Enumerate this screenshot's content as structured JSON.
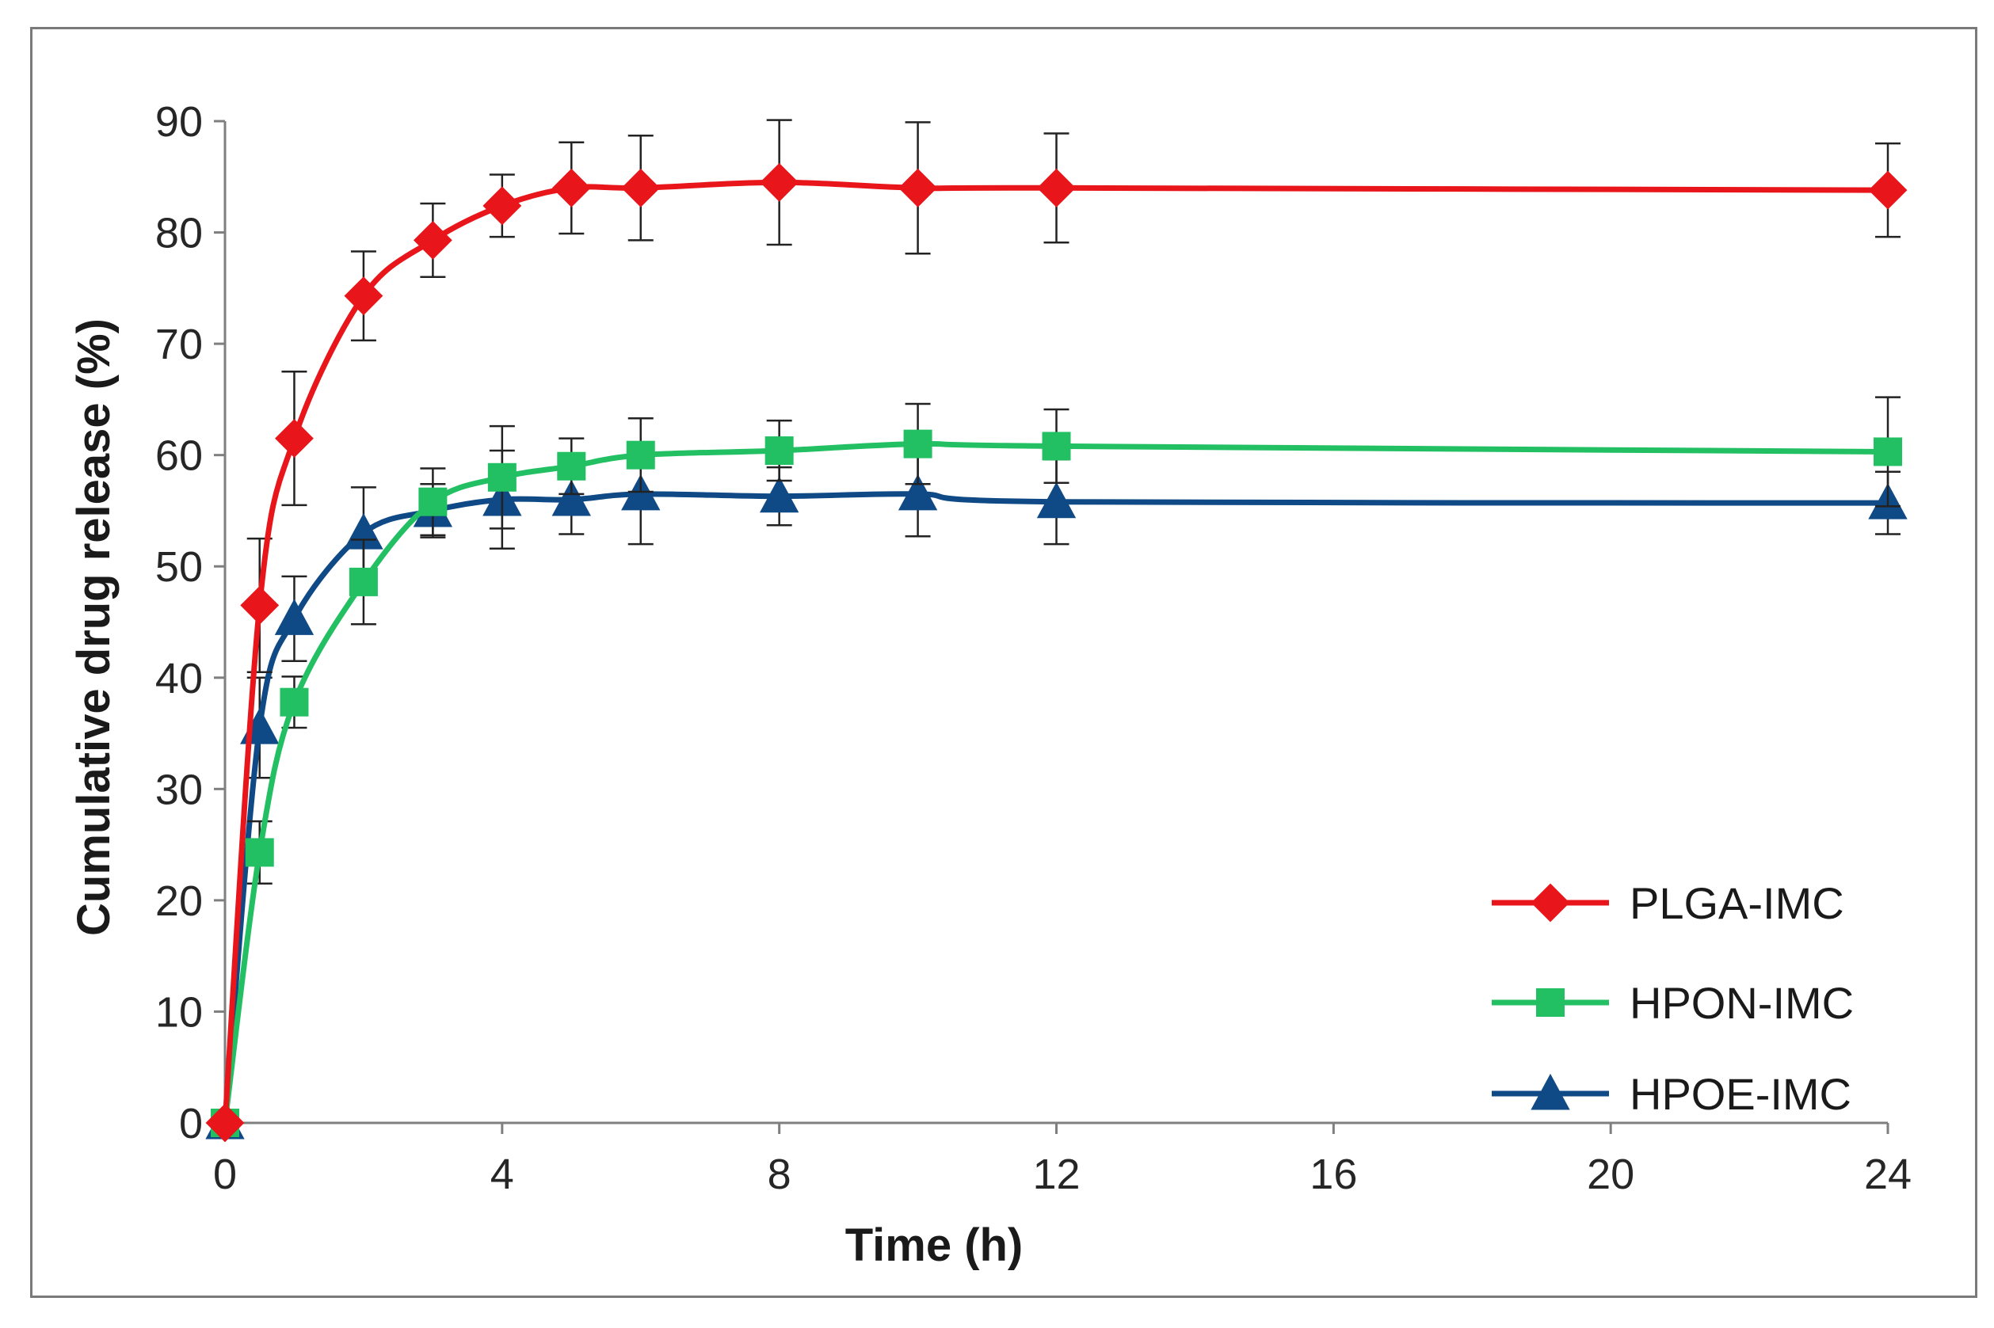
{
  "chart_data": {
    "type": "line",
    "title": "",
    "xlabel": "Time (h)",
    "ylabel": "Cumulative drug release (%)",
    "xlim": [
      0,
      24
    ],
    "ylim": [
      0,
      90
    ],
    "xticks": [
      0,
      4,
      8,
      12,
      16,
      20,
      24
    ],
    "yticks": [
      0,
      10,
      20,
      30,
      40,
      50,
      60,
      70,
      80,
      90
    ],
    "grid": false,
    "legend_position": "bottom-right",
    "x": [
      0,
      0.5,
      1,
      2,
      3,
      4,
      5,
      6,
      8,
      10,
      12,
      24
    ],
    "series": [
      {
        "name": "PLGA-IMC",
        "color": "#e8161b",
        "marker": "diamond",
        "values": [
          0,
          46.5,
          61.5,
          74.3,
          79.3,
          82.4,
          84.0,
          84.0,
          84.5,
          84.0,
          84.0,
          83.8
        ],
        "errors": [
          0,
          6.0,
          6.0,
          4.0,
          3.3,
          2.8,
          4.1,
          4.7,
          5.6,
          5.9,
          4.9,
          4.2
        ]
      },
      {
        "name": "HPON-IMC",
        "color": "#22c063",
        "marker": "square",
        "values": [
          0,
          24.3,
          37.8,
          48.6,
          55.8,
          58.0,
          59.0,
          60.0,
          60.4,
          61.0,
          60.8,
          60.3
        ],
        "errors": [
          0,
          2.8,
          2.3,
          3.8,
          3.0,
          4.6,
          2.5,
          3.3,
          2.7,
          3.6,
          3.3,
          4.9
        ]
      },
      {
        "name": "HPOE-IMC",
        "color": "#0f4a86",
        "marker": "triangle",
        "values": [
          0,
          35.5,
          45.3,
          53.0,
          55.0,
          56.0,
          56.0,
          56.5,
          56.3,
          56.5,
          55.8,
          55.7
        ],
        "errors": [
          0,
          4.5,
          3.8,
          4.1,
          2.4,
          4.4,
          3.1,
          4.5,
          2.6,
          3.8,
          3.8,
          2.8
        ]
      }
    ]
  }
}
